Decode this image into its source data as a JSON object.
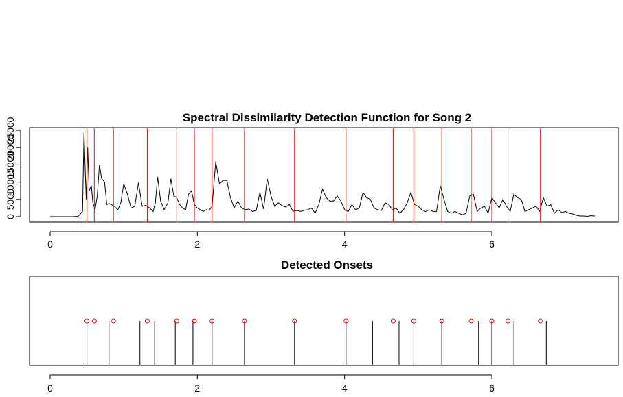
{
  "chart_data": [
    {
      "type": "line",
      "title": "Spectral Dissimilarity Detection Function for Song 2",
      "xlabel": "",
      "ylabel": "",
      "xlim": [
        -0.3,
        7.6
      ],
      "ylim": [
        -2000,
        26000
      ],
      "x_ticks": [
        0,
        2,
        4,
        6
      ],
      "x_tick_labels": [
        "0",
        "2",
        "4",
        "6"
      ],
      "y_ticks": [
        0,
        5000,
        10000,
        15000,
        20000,
        25000
      ],
      "y_tick_labels": [
        "0",
        "5000",
        "10000",
        "15000",
        "20000",
        "25000"
      ],
      "grid": false,
      "colors": {
        "line": "#000000",
        "onset_lines": "#ff0000"
      },
      "series": [
        {
          "x": [
            0.0,
            0.1,
            0.2,
            0.3,
            0.38,
            0.44,
            0.46,
            0.49,
            0.51,
            0.53,
            0.56,
            0.58,
            0.61,
            0.64,
            0.67,
            0.7,
            0.74,
            0.77,
            0.8,
            0.83,
            0.86,
            0.88,
            0.92,
            0.96,
            1.0,
            1.05,
            1.1,
            1.15,
            1.2,
            1.25,
            1.3,
            1.35,
            1.4,
            1.43,
            1.46,
            1.5,
            1.55,
            1.6,
            1.64,
            1.68,
            1.72,
            1.76,
            1.8,
            1.84,
            1.88,
            1.92,
            1.96,
            2.0,
            2.04,
            2.08,
            2.12,
            2.16,
            2.2,
            2.25,
            2.3,
            2.35,
            2.4,
            2.45,
            2.5,
            2.55,
            2.6,
            2.65,
            2.7,
            2.75,
            2.8,
            2.85,
            2.9,
            2.95,
            3.0,
            3.05,
            3.1,
            3.15,
            3.2,
            3.25,
            3.3,
            3.35,
            3.4,
            3.45,
            3.5,
            3.55,
            3.6,
            3.65,
            3.7,
            3.75,
            3.8,
            3.85,
            3.9,
            3.95,
            4.0,
            4.05,
            4.1,
            4.15,
            4.2,
            4.25,
            4.3,
            4.35,
            4.4,
            4.45,
            4.5,
            4.55,
            4.6,
            4.65,
            4.7,
            4.75,
            4.8,
            4.85,
            4.9,
            4.95,
            5.0,
            5.05,
            5.1,
            5.15,
            5.2,
            5.25,
            5.3,
            5.35,
            5.4,
            5.45,
            5.5,
            5.55,
            5.6,
            5.65,
            5.7,
            5.75,
            5.8,
            5.85,
            5.9,
            5.95,
            6.0,
            6.05,
            6.1,
            6.15,
            6.2,
            6.25,
            6.3,
            6.35,
            6.4,
            6.45,
            6.5,
            6.55,
            6.6,
            6.65,
            6.7,
            6.75,
            6.8,
            6.85,
            6.9,
            6.95,
            7.0,
            7.05,
            7.1,
            7.15,
            7.2,
            7.25,
            7.3,
            7.35,
            7.4
          ],
          "values": [
            0,
            0,
            0,
            0,
            100,
            1500,
            24500,
            5000,
            20000,
            7500,
            9000,
            4000,
            2000,
            6000,
            15000,
            11000,
            10000,
            3500,
            3800,
            3500,
            3200,
            2800,
            2000,
            4000,
            9500,
            6500,
            2500,
            3000,
            9800,
            3000,
            3300,
            2500,
            1500,
            4000,
            11500,
            4500,
            2000,
            4000,
            11000,
            6000,
            5500,
            3500,
            2500,
            2000,
            6500,
            7500,
            3500,
            2500,
            2000,
            1500,
            2000,
            1800,
            3000,
            16000,
            9500,
            10500,
            10500,
            5500,
            2500,
            4500,
            2500,
            2000,
            2200,
            1500,
            1800,
            7000,
            2200,
            11000,
            6000,
            3000,
            4000,
            3200,
            2800,
            3500,
            1500,
            1800,
            1500,
            1800,
            2000,
            2500,
            1000,
            3500,
            8000,
            5500,
            4500,
            4500,
            6000,
            4500,
            2000,
            1500,
            3500,
            2000,
            2500,
            7000,
            5500,
            5000,
            2500,
            2000,
            1800,
            4000,
            3500,
            2000,
            2500,
            1000,
            2000,
            4000,
            7000,
            3500,
            3000,
            2000,
            1500,
            2000,
            1500,
            1500,
            9000,
            5000,
            1500,
            1000,
            1500,
            1000,
            500,
            1000,
            6000,
            6500,
            1500,
            2500,
            3000,
            1000,
            5500,
            4000,
            2500,
            5000,
            3000,
            1500,
            6500,
            5500,
            5000,
            1500,
            2000,
            2500,
            3000,
            1500,
            5500,
            3000,
            3500,
            1000,
            2000,
            1200,
            1500,
            1000,
            800,
            400,
            200,
            200,
            100,
            300,
            200
          ]
        }
      ],
      "onsets": [
        0.5,
        0.6,
        0.86,
        1.32,
        1.72,
        1.96,
        2.2,
        2.64,
        3.32,
        4.02,
        4.66,
        4.94,
        5.32,
        5.72,
        6.0,
        6.22,
        6.66
      ]
    },
    {
      "type": "scatter",
      "title": "Detected Onsets",
      "xlabel": "",
      "ylabel": "",
      "xlim": [
        -0.3,
        7.6
      ],
      "x_ticks": [
        0,
        2,
        4,
        6
      ],
      "x_tick_labels": [
        "0",
        "2",
        "4",
        "6"
      ],
      "grid": false,
      "colors": {
        "stems": "#000000",
        "points": "#ff0000"
      },
      "stems_x": [
        0.5,
        0.8,
        1.22,
        1.42,
        1.7,
        1.94,
        2.2,
        2.64,
        3.32,
        4.02,
        4.38,
        4.74,
        4.94,
        5.32,
        5.82,
        6.0,
        6.3,
        6.74
      ],
      "points_x": [
        0.5,
        0.6,
        0.86,
        1.32,
        1.72,
        1.96,
        2.2,
        2.64,
        3.32,
        4.02,
        4.66,
        4.94,
        5.32,
        5.72,
        6.0,
        6.22,
        6.66
      ]
    }
  ]
}
